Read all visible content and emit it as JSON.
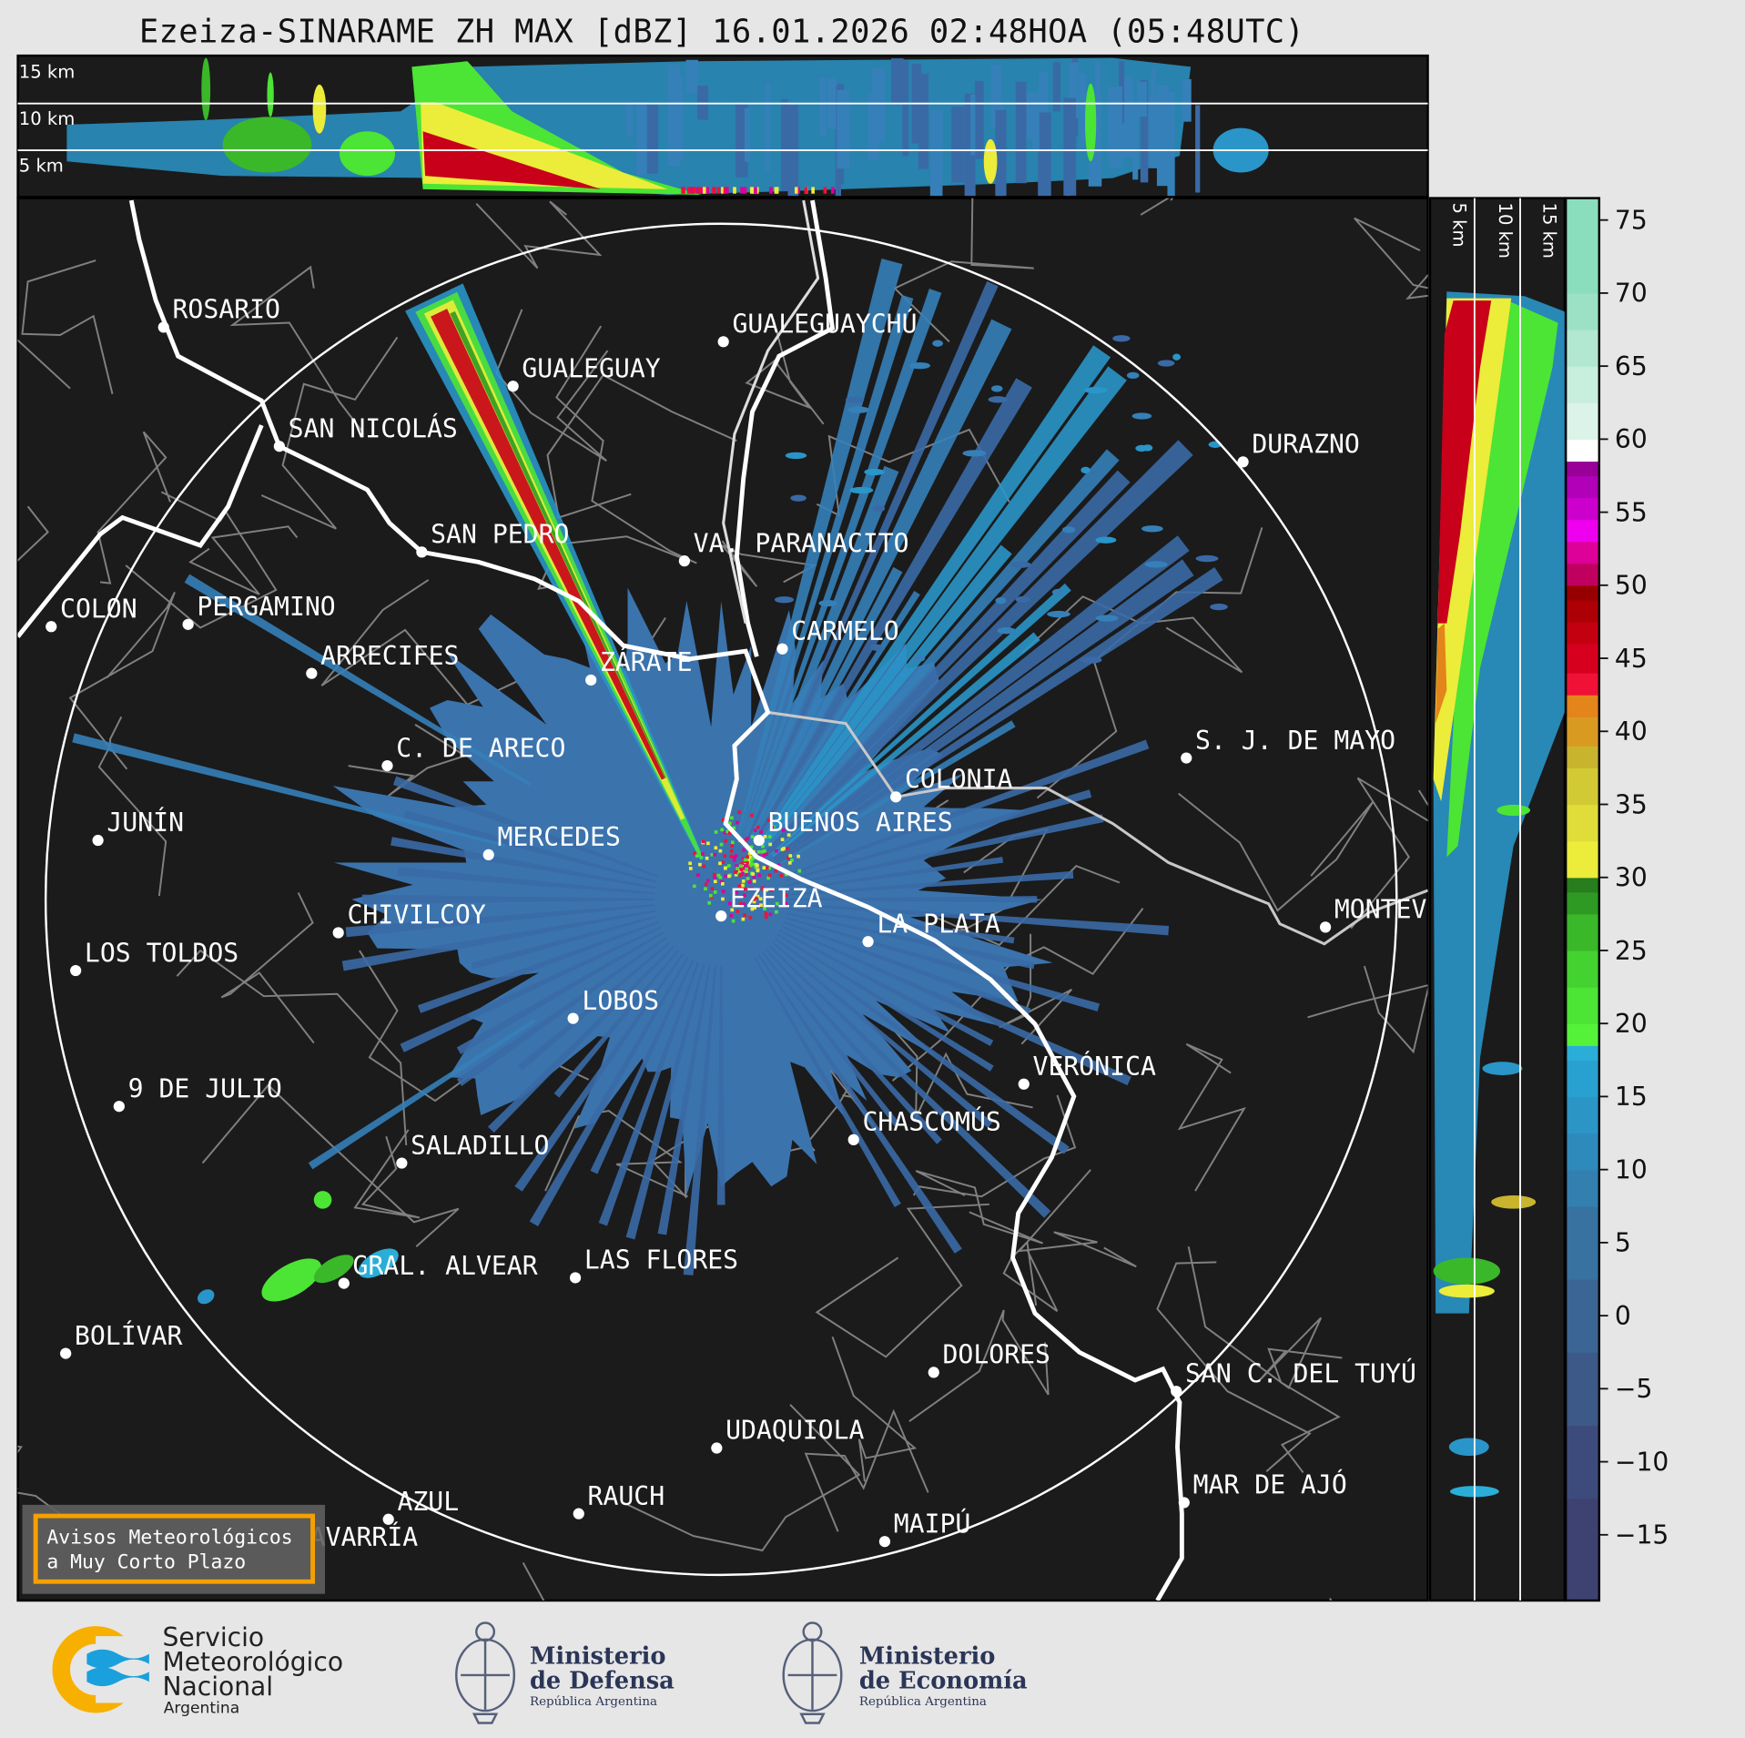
{
  "title": "Ezeiza-SINARAME ZH MAX [dBZ] 16.01.2026 02:48HOA (05:48UTC)",
  "top_panel": {
    "height_labels": [
      "15 km",
      "10 km",
      "5 km"
    ]
  },
  "side_panel": {
    "height_labels": [
      "5 km",
      "10 km",
      "15 km"
    ]
  },
  "colorbar": {
    "unit": "dBZ",
    "range": [
      -19.5,
      76.5
    ],
    "ticks": [
      "75",
      "70",
      "65",
      "60",
      "55",
      "50",
      "45",
      "40",
      "35",
      "30",
      "25",
      "20",
      "15",
      "10",
      "5",
      "0",
      "−5",
      "−10",
      "−15"
    ],
    "tick_values": [
      75,
      70,
      65,
      60,
      55,
      50,
      45,
      40,
      35,
      30,
      25,
      20,
      15,
      10,
      5,
      0,
      -5,
      -10,
      -15
    ],
    "stops": [
      [
        -19.5,
        "#3d4270"
      ],
      [
        -12.5,
        "#3d4b7c"
      ],
      [
        -7.5,
        "#3c5987"
      ],
      [
        -2.5,
        "#3b6594"
      ],
      [
        2.5,
        "#3872a0"
      ],
      [
        7.5,
        "#3380b0"
      ],
      [
        10,
        "#2f8abc"
      ],
      [
        12.5,
        "#2b95c6"
      ],
      [
        15,
        "#28a0d0"
      ],
      [
        17.5,
        "#2aaed8"
      ],
      [
        18.5,
        "#55f23a"
      ],
      [
        20,
        "#4ce435"
      ],
      [
        22.5,
        "#43d22f"
      ],
      [
        25,
        "#3ab82a"
      ],
      [
        27.5,
        "#2e9a24"
      ],
      [
        29,
        "#287d1e"
      ],
      [
        30,
        "#ecec3a"
      ],
      [
        32.5,
        "#e0dc3a"
      ],
      [
        35,
        "#d2ca34"
      ],
      [
        37.5,
        "#c9b42e"
      ],
      [
        39,
        "#d99a22"
      ],
      [
        41,
        "#e3851a"
      ],
      [
        42.5,
        "#f01236"
      ],
      [
        44,
        "#d6001e"
      ],
      [
        46,
        "#c20010"
      ],
      [
        47.5,
        "#ad0006"
      ],
      [
        49,
        "#970000"
      ],
      [
        50,
        "#c0005e"
      ],
      [
        51.5,
        "#dd0099"
      ],
      [
        53,
        "#ee00ee"
      ],
      [
        54.5,
        "#cc00cc"
      ],
      [
        56,
        "#b000b8"
      ],
      [
        57.5,
        "#980098"
      ],
      [
        58.5,
        "#ffffff"
      ],
      [
        60,
        "#dcf3ea"
      ],
      [
        62.5,
        "#c8eedd"
      ],
      [
        65,
        "#b2e8d2"
      ],
      [
        67.5,
        "#9ce1c5"
      ],
      [
        70,
        "#8addbd"
      ]
    ]
  },
  "cities": [
    "ROSARIO",
    "SAN NICOLÁS",
    "GUALEGUAY",
    "GUALEGUAYCHÚ",
    "SAN PEDRO",
    "VA. PARANACITO",
    "COLON",
    "PERGAMINO",
    "ARRECIFES",
    "ZÁRATE",
    "CARMELO",
    "DURAZNO",
    "C. DE ARECO",
    "S. J. DE MAYO",
    "COLONIA",
    "BUENOS AIRES",
    "JUNÍN",
    "MERCEDES",
    "EZEIZA",
    "MONTEVIDEO",
    "CHIVILCOY",
    "LA PLATA",
    "LOS TOLDOS",
    "LOBOS",
    "VERÓNICA",
    "9 DE JULIO",
    "CHASCOMÚS",
    "SALADILLO",
    "GRAL. ALVEAR",
    "LAS FLORES",
    "BOLÍVAR",
    "DOLORES",
    "SAN C. DEL TUYÚ",
    "UDAQUIOLA",
    "AZUL",
    "RAUCH",
    "OLAVARRÍA",
    "MAIPÚ",
    "MAR DE AJÓ"
  ],
  "notice_button": {
    "line1": "Avisos Meteorológicos",
    "line2": "a Muy Corto Plazo",
    "border_color": "#f5a000"
  },
  "footer": {
    "smn": {
      "line1": "Servicio",
      "line2": "Meteorológico",
      "line3": "Nacional",
      "line4": "Argentina"
    },
    "defensa": {
      "line1": "Ministerio",
      "line2": "de Defensa",
      "line3": "República Argentina"
    },
    "economia": {
      "line1": "Ministerio",
      "line2": "de Economía",
      "line3": "República Argentina"
    }
  }
}
